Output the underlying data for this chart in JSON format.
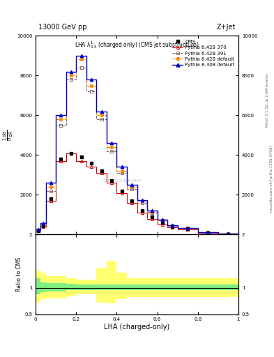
{
  "title_top": "13000 GeV pp",
  "title_right": "Z+Jet",
  "plot_title": "LHA $\\lambda^{1}_{0.5}$ (charged only) (CMS jet substructure)",
  "xlabel": "LHA (charged-only)",
  "right_label": "Rivet 3.1.10, ≥ 2.6M events",
  "arxiv_label": "mcplots.cern.ch [arXiv:1306.3436]",
  "watermark": "CMS_2019201897",
  "xlim": [
    0,
    1
  ],
  "ylim_main": [
    0,
    10000
  ],
  "ylim_ratio": [
    0.5,
    2.0
  ],
  "x_bins": [
    0.0,
    0.025,
    0.05,
    0.1,
    0.15,
    0.2,
    0.25,
    0.3,
    0.35,
    0.4,
    0.45,
    0.5,
    0.55,
    0.6,
    0.65,
    0.7,
    0.8,
    0.9,
    1.0
  ],
  "cms_data": [
    200,
    450,
    1800,
    3800,
    4100,
    3900,
    3600,
    3200,
    2700,
    2200,
    1700,
    1200,
    900,
    600,
    400,
    280,
    100,
    30
  ],
  "pythia_6428_370": [
    180,
    400,
    1700,
    3700,
    4100,
    3700,
    3400,
    3100,
    2600,
    2100,
    1600,
    1100,
    800,
    500,
    350,
    250,
    90,
    25
  ],
  "pythia_6428_391": [
    220,
    500,
    2200,
    5500,
    7800,
    8400,
    7200,
    5800,
    4200,
    3100,
    2300,
    1600,
    1100,
    700,
    450,
    320,
    120,
    35
  ],
  "pythia_6428_default": [
    240,
    550,
    2400,
    5800,
    8000,
    8800,
    7500,
    6000,
    4400,
    3200,
    2400,
    1700,
    1150,
    720,
    460,
    330,
    125,
    38
  ],
  "pythia_8308_default": [
    260,
    580,
    2600,
    6000,
    8200,
    9000,
    7800,
    6200,
    4600,
    3400,
    2500,
    1750,
    1200,
    750,
    480,
    340,
    130,
    40
  ],
  "ratio_green_lo": [
    0.88,
    0.92,
    0.93,
    0.93,
    0.95,
    0.96,
    0.96,
    0.96,
    0.96,
    0.96,
    0.96,
    0.96,
    0.96,
    0.96,
    0.96,
    0.96,
    0.96,
    0.96
  ],
  "ratio_green_hi": [
    1.18,
    1.1,
    1.08,
    1.08,
    1.07,
    1.06,
    1.06,
    1.06,
    1.06,
    1.06,
    1.06,
    1.06,
    1.06,
    1.06,
    1.06,
    1.06,
    1.06,
    1.06
  ],
  "ratio_yellow_lo": [
    0.72,
    0.78,
    0.8,
    0.8,
    0.84,
    0.87,
    0.87,
    0.72,
    0.7,
    0.78,
    0.82,
    0.82,
    0.82,
    0.82,
    0.82,
    0.82,
    0.82,
    0.82
  ],
  "ratio_yellow_hi": [
    1.32,
    1.28,
    1.22,
    1.22,
    1.18,
    1.15,
    1.15,
    1.38,
    1.5,
    1.28,
    1.18,
    1.18,
    1.18,
    1.18,
    1.18,
    1.18,
    1.18,
    1.18
  ],
  "color_cms": "#000000",
  "color_p6370": "#cc0000",
  "color_p6391": "#886666",
  "color_p6default": "#ff8800",
  "color_p8default": "#0000cc",
  "color_green": "#80ee80",
  "color_yellow": "#ffff70",
  "yticks_main": [
    2000,
    4000,
    6000,
    8000,
    10000
  ],
  "ytick_labels_main": [
    "2000",
    "4000",
    "6000",
    "8000",
    "10000"
  ]
}
